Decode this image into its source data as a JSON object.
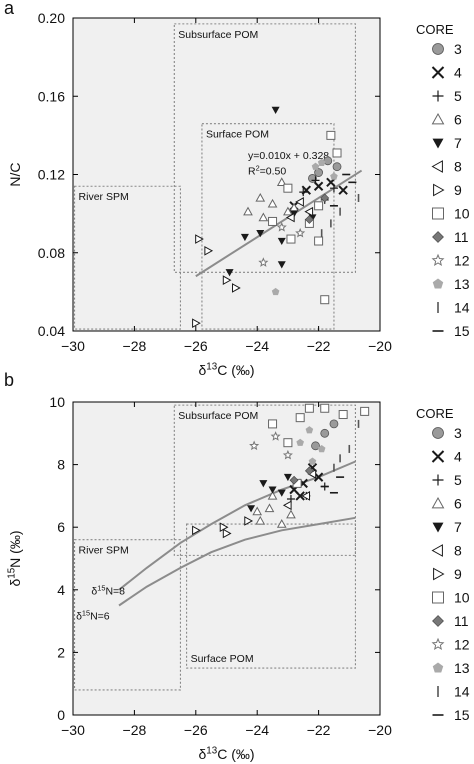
{
  "colors": {
    "plot_bg": "#f0f0f0",
    "region_border": "#888888",
    "trend": "#8c8c8c",
    "marker_dark": "#1a1a1a",
    "marker_gray": "#9a9a9a"
  },
  "legend": {
    "title": "CORE",
    "entries": [
      {
        "label": "3",
        "marker": "circle"
      },
      {
        "label": "4",
        "marker": "x"
      },
      {
        "label": "5",
        "marker": "plus"
      },
      {
        "label": "6",
        "marker": "triangle-up-open"
      },
      {
        "label": "7",
        "marker": "triangle-down-filled"
      },
      {
        "label": "8",
        "marker": "triangle-left-open"
      },
      {
        "label": "9",
        "marker": "triangle-right-open"
      },
      {
        "label": "10",
        "marker": "square-open"
      },
      {
        "label": "11",
        "marker": "diamond-filled"
      },
      {
        "label": "12",
        "marker": "star"
      },
      {
        "label": "13",
        "marker": "pentagon-filled"
      },
      {
        "label": "14",
        "marker": "vbar"
      },
      {
        "label": "15",
        "marker": "hbar"
      }
    ]
  },
  "chart_data": [
    {
      "panel_label": "a",
      "type": "scatter",
      "xlabel": "δ13C (‰)",
      "ylabel": "N/C",
      "xlim": [
        -30,
        -20
      ],
      "ylim": [
        0.04,
        0.2
      ],
      "xticks": [
        -30,
        -28,
        -26,
        -24,
        -22,
        -20
      ],
      "yticks": [
        0.04,
        0.08,
        0.12,
        0.16,
        0.2
      ],
      "ytick_labels": [
        "0.04",
        "0.08",
        "0.12",
        "0.16",
        "0.20"
      ],
      "regions": [
        {
          "label": "Subsurface POM",
          "x": [
            -26.7,
            -20.8
          ],
          "y": [
            0.07,
            0.197
          ]
        },
        {
          "label": "Surface POM",
          "x": [
            -25.8,
            -21.5
          ],
          "y": [
            0.041,
            0.146
          ]
        },
        {
          "label": "River SPM",
          "x": [
            -29.95,
            -26.5
          ],
          "y": [
            0.041,
            0.114
          ]
        }
      ],
      "regression": {
        "equation": "y=0.010x + 0.328",
        "r2": "R²=0.50",
        "x": [
          -26,
          -20.6
        ]
      },
      "series": [
        {
          "name": "3",
          "points": [
            [
              -22,
              0.121
            ],
            [
              -21.7,
              0.127
            ],
            [
              -21.4,
              0.124
            ],
            [
              -22.2,
              0.118
            ]
          ]
        },
        {
          "name": "4",
          "points": [
            [
              -22.4,
              0.112
            ],
            [
              -22,
              0.114
            ],
            [
              -21.6,
              0.116
            ],
            [
              -21.2,
              0.112
            ],
            [
              -22.8,
              0.104
            ]
          ]
        },
        {
          "name": "5",
          "points": [
            [
              -22.1,
              0.117
            ],
            [
              -21.5,
              0.113
            ],
            [
              -21.8,
              0.107
            ],
            [
              -22.5,
              0.111
            ]
          ]
        },
        {
          "name": "6",
          "points": [
            [
              -24.3,
              0.101
            ],
            [
              -23.9,
              0.108
            ],
            [
              -23.5,
              0.105
            ],
            [
              -23.2,
              0.116
            ],
            [
              -23.8,
              0.098
            ],
            [
              -22.8,
              0.103
            ],
            [
              -23,
              0.101
            ]
          ]
        },
        {
          "name": "7",
          "points": [
            [
              -23.4,
              0.153
            ],
            [
              -24.4,
              0.088
            ],
            [
              -23.9,
              0.09
            ],
            [
              -22.8,
              0.1
            ],
            [
              -23.2,
              0.086
            ],
            [
              -24.9,
              0.07
            ],
            [
              -23.2,
              0.074
            ],
            [
              -22.2,
              0.098
            ]
          ]
        },
        {
          "name": "8",
          "points": [
            [
              -22.6,
              0.106
            ],
            [
              -22.3,
              0.101
            ],
            [
              -22.9,
              0.098
            ]
          ]
        },
        {
          "name": "9",
          "points": [
            [
              -25.9,
              0.087
            ],
            [
              -25,
              0.066
            ],
            [
              -24.7,
              0.062
            ],
            [
              -25.6,
              0.081
            ],
            [
              -26,
              0.044
            ]
          ]
        },
        {
          "name": "10",
          "points": [
            [
              -21.6,
              0.14
            ],
            [
              -21.4,
              0.131
            ],
            [
              -23,
              0.113
            ],
            [
              -22,
              0.104
            ],
            [
              -22.3,
              0.095
            ],
            [
              -22.9,
              0.087
            ],
            [
              -22,
              0.086
            ],
            [
              -21.8,
              0.056
            ],
            [
              -23.5,
              0.096
            ]
          ]
        },
        {
          "name": "11",
          "points": [
            [
              -21.8,
              0.108
            ],
            [
              -22.3,
              0.097
            ]
          ]
        },
        {
          "name": "12",
          "points": [
            [
              -23.8,
              0.075
            ],
            [
              -22.6,
              0.09
            ],
            [
              -23.2,
              0.093
            ]
          ]
        },
        {
          "name": "13",
          "points": [
            [
              -21.9,
              0.126
            ],
            [
              -21.5,
              0.119
            ],
            [
              -22.1,
              0.124
            ],
            [
              -23.4,
              0.06
            ]
          ]
        },
        {
          "name": "14",
          "points": [
            [
              -21.9,
              0.09
            ],
            [
              -21.6,
              0.095
            ],
            [
              -20.7,
              0.108
            ],
            [
              -21.3,
              0.101
            ]
          ]
        },
        {
          "name": "15",
          "points": [
            [
              -21.1,
              0.12
            ],
            [
              -21.5,
              0.104
            ],
            [
              -20.9,
              0.116
            ]
          ]
        }
      ]
    },
    {
      "panel_label": "b",
      "type": "scatter",
      "xlabel": "δ13C (‰)",
      "ylabel": "δ15N (‰)",
      "xlim": [
        -30,
        -20
      ],
      "ylim": [
        0,
        10
      ],
      "xticks": [
        -30,
        -28,
        -26,
        -24,
        -22,
        -20
      ],
      "yticks": [
        0,
        2,
        4,
        6,
        8,
        10
      ],
      "ytick_labels": [
        "0",
        "2",
        "4",
        "6",
        "8",
        "10"
      ],
      "regions": [
        {
          "label": "Subsurface POM",
          "x": [
            -26.7,
            -20.8
          ],
          "y": [
            5.1,
            9.9
          ]
        },
        {
          "label": "Surface POM",
          "x": [
            -26.3,
            -20.8
          ],
          "y": [
            1.5,
            6.1
          ]
        },
        {
          "label": "River SPM",
          "x": [
            -29.95,
            -26.5
          ],
          "y": [
            0.8,
            5.6
          ]
        }
      ],
      "curves": [
        {
          "label": "δ15N=8",
          "x": [
            -28.5,
            -27.6,
            -26.5,
            -25.5,
            -24.4,
            -23.2,
            -22,
            -20.8
          ],
          "y": [
            4.0,
            4.7,
            5.5,
            6.1,
            6.7,
            7.2,
            7.6,
            8.1
          ]
        },
        {
          "label": "δ15N=6",
          "x": [
            -28.5,
            -27.6,
            -26.5,
            -25.5,
            -24.4,
            -23.2,
            -22,
            -20.8
          ],
          "y": [
            3.5,
            4.1,
            4.7,
            5.2,
            5.6,
            5.9,
            6.1,
            6.3
          ]
        }
      ],
      "series": [
        {
          "name": "3",
          "points": [
            [
              -21.8,
              9.0
            ],
            [
              -22.1,
              8.6
            ],
            [
              -21.5,
              9.3
            ]
          ]
        },
        {
          "name": "4",
          "points": [
            [
              -22.5,
              7.4
            ],
            [
              -22.2,
              7.9
            ],
            [
              -22.8,
              7.2
            ],
            [
              -22,
              7.6
            ],
            [
              -22.6,
              7.0
            ]
          ]
        },
        {
          "name": "5",
          "points": [
            [
              -22.4,
              7.0
            ],
            [
              -22.9,
              6.9
            ],
            [
              -21.8,
              7.3
            ]
          ]
        },
        {
          "name": "6",
          "points": [
            [
              -24,
              6.5
            ],
            [
              -23.6,
              6.6
            ],
            [
              -23.2,
              6.1
            ],
            [
              -23.5,
              7.0
            ],
            [
              -23.9,
              6.2
            ],
            [
              -22.9,
              6.4
            ]
          ]
        },
        {
          "name": "7",
          "points": [
            [
              -23.5,
              7.2
            ],
            [
              -23.8,
              7.4
            ],
            [
              -23.2,
              7.1
            ],
            [
              -24.2,
              6.6
            ],
            [
              -22.7,
              7.4
            ],
            [
              -23,
              7.6
            ]
          ]
        },
        {
          "name": "8",
          "points": [
            [
              -22.4,
              7.0
            ],
            [
              -23,
              6.7
            ],
            [
              -22.2,
              7.7
            ]
          ]
        },
        {
          "name": "9",
          "points": [
            [
              -26,
              5.9
            ],
            [
              -25.1,
              6.0
            ],
            [
              -24.3,
              6.2
            ],
            [
              -25,
              5.8
            ]
          ]
        },
        {
          "name": "10",
          "points": [
            [
              -22.3,
              9.8
            ],
            [
              -21.8,
              9.8
            ],
            [
              -21.2,
              9.6
            ],
            [
              -20.5,
              9.7
            ],
            [
              -23.5,
              9.3
            ],
            [
              -23,
              8.7
            ],
            [
              -22.6,
              9.5
            ],
            [
              -22.7,
              7.4
            ]
          ]
        },
        {
          "name": "11",
          "points": [
            [
              -22.8,
              7.5
            ],
            [
              -22.3,
              7.8
            ]
          ]
        },
        {
          "name": "12",
          "points": [
            [
              -24.1,
              8.6
            ],
            [
              -23,
              8.3
            ],
            [
              -23.4,
              8.9
            ]
          ]
        },
        {
          "name": "13",
          "points": [
            [
              -22.6,
              8.7
            ],
            [
              -22.2,
              8.1
            ],
            [
              -21.9,
              8.5
            ],
            [
              -22.3,
              9.1
            ]
          ]
        },
        {
          "name": "14",
          "points": [
            [
              -21.3,
              8.2
            ],
            [
              -21,
              8.5
            ],
            [
              -20.7,
              9.3
            ],
            [
              -21.5,
              7.9
            ]
          ]
        },
        {
          "name": "15",
          "points": [
            [
              -21.8,
              7.3
            ],
            [
              -21.3,
              7.6
            ],
            [
              -21.5,
              7.1
            ]
          ]
        }
      ]
    }
  ]
}
